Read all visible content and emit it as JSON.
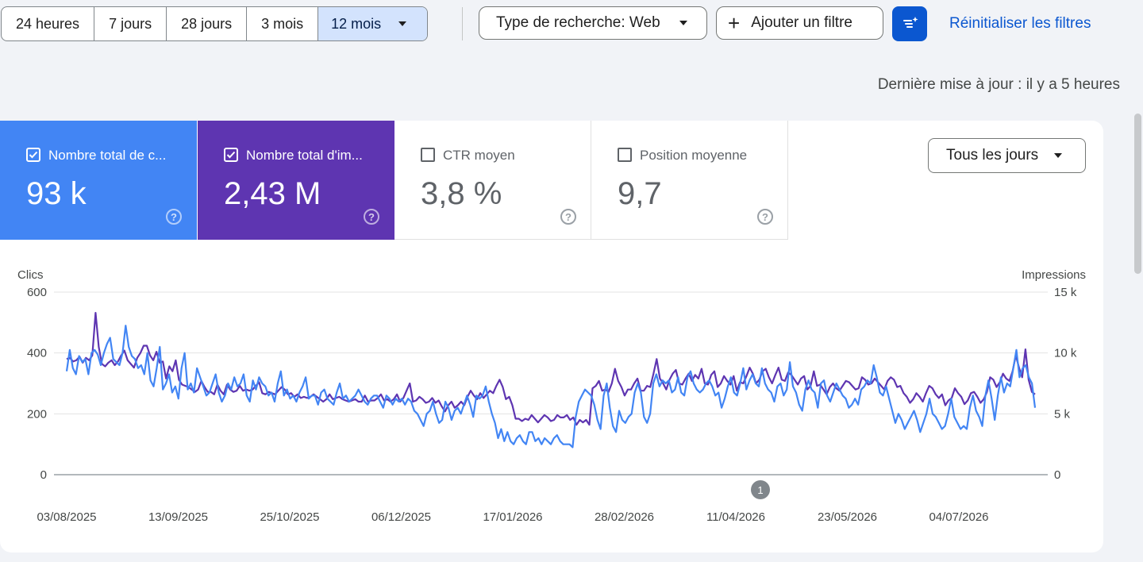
{
  "filters": {
    "ranges": [
      "24 heures",
      "7 jours",
      "28 jours",
      "3 mois"
    ],
    "range_selected": "12 mois",
    "search_type": "Type de recherche: Web",
    "add_filter": "Ajouter un filtre",
    "reset": "Réinitialiser les filtres"
  },
  "last_update": "Dernière mise à jour : il y a 5 heures",
  "metrics": [
    {
      "label": "Nombre total de c...",
      "value": "93 k",
      "checked": true,
      "color": "#4285f4"
    },
    {
      "label": "Nombre total d'im...",
      "value": "2,43 M",
      "checked": true,
      "color": "#5e35b1"
    },
    {
      "label": "CTR moyen",
      "value": "3,8 %",
      "checked": false
    },
    {
      "label": "Position moyenne",
      "value": "9,7",
      "checked": false
    }
  ],
  "help_glyph": "?",
  "granularity": "Tous les jours",
  "annotation_marker": "1",
  "icons": {
    "filter_settings": "filter-sparkle-icon",
    "dropdown": "arrow-drop-down-icon",
    "add": "plus-icon",
    "help": "help-circle-icon"
  },
  "chart_data": {
    "type": "line",
    "xlabel": "",
    "y_left_label": "Clics",
    "y_right_label": "Impressions",
    "y_left_ticks": [
      "0",
      "200",
      "400",
      "600"
    ],
    "y_right_ticks": [
      "0",
      "5 k",
      "10 k",
      "15 k"
    ],
    "y_left_range": [
      0,
      600
    ],
    "y_right_range": [
      0,
      15000
    ],
    "x_tick_labels": [
      "03/08/2025",
      "13/09/2025",
      "25/10/2025",
      "06/12/2025",
      "17/01/2026",
      "28/02/2026",
      "11/04/2026",
      "23/05/2026",
      "04/07/2026"
    ],
    "grid": true,
    "series": [
      {
        "name": "Clics",
        "axis": "left",
        "color": "#4285f4",
        "values": [
          340,
          410,
          350,
          330,
          390,
          370,
          380,
          330,
          400,
          410,
          395,
          360,
          400,
          430,
          450,
          380,
          370,
          360,
          400,
          490,
          420,
          390,
          380,
          350,
          360,
          330,
          400,
          310,
          290,
          350,
          420,
          280,
          300,
          330,
          270,
          290,
          250,
          350,
          400,
          280,
          300,
          270,
          350,
          320,
          290,
          260,
          270,
          300,
          330,
          270,
          240,
          260,
          300,
          280,
          320,
          290,
          300,
          330,
          260,
          240,
          310,
          280,
          320,
          300,
          290,
          260,
          270,
          240,
          300,
          340,
          260,
          280,
          250,
          260,
          240,
          270,
          290,
          320,
          250,
          260,
          260,
          230,
          270,
          280,
          250,
          240,
          230,
          270,
          300,
          250,
          260,
          240,
          250,
          260,
          280,
          260,
          240,
          230,
          250,
          260,
          260,
          240,
          220,
          260,
          250,
          230,
          250,
          240,
          250,
          230,
          250,
          240,
          210,
          200,
          180,
          160,
          200,
          210,
          240,
          200,
          170,
          180,
          240,
          220,
          180,
          210,
          220,
          200,
          230,
          260,
          230,
          190,
          260,
          250,
          260,
          290,
          240,
          200,
          170,
          120,
          150,
          110,
          140,
          110,
          100,
          120,
          130,
          110,
          100,
          140,
          140,
          110,
          120,
          100,
          120,
          110,
          100,
          120,
          130,
          110,
          100,
          100,
          100,
          90,
          190,
          240,
          260,
          280,
          270,
          260,
          230,
          180,
          150,
          260,
          300,
          220,
          160,
          140,
          210,
          180,
          170,
          190,
          200,
          270,
          300,
          270,
          190,
          170,
          200,
          300,
          330,
          290,
          310,
          300,
          310,
          270,
          280,
          320,
          270,
          260,
          320,
          340,
          300,
          280,
          270,
          280,
          300,
          310,
          290,
          260,
          270,
          220,
          250,
          290,
          320,
          270,
          260,
          300,
          350,
          280,
          310,
          330,
          300,
          290,
          350,
          300,
          280,
          270,
          240,
          290,
          300,
          260,
          280,
          370,
          290,
          270,
          230,
          210,
          280,
          310,
          280,
          270,
          220,
          300,
          310,
          260,
          240,
          270,
          300,
          280,
          260,
          250,
          220,
          230,
          250,
          230,
          280,
          290,
          310,
          300,
          360,
          320,
          270,
          260,
          290,
          250,
          210,
          170,
          200,
          180,
          150,
          170,
          190,
          210,
          180,
          140,
          170,
          200,
          250,
          200,
          190,
          170,
          150,
          160,
          200,
          250,
          190,
          170,
          150,
          160,
          150,
          220,
          260,
          210,
          190,
          160,
          260,
          310,
          250,
          180,
          260,
          320,
          270,
          300,
          290,
          350,
          410,
          320,
          350,
          360,
          320,
          300,
          220
        ]
      },
      {
        "name": "Impressions",
        "axis": "right",
        "color": "#5e35b1",
        "values": [
          9500,
          9600,
          9300,
          9400,
          9700,
          9200,
          9600,
          9400,
          9800,
          13300,
          10500,
          9100,
          8900,
          9200,
          9400,
          9000,
          9300,
          9800,
          10200,
          9400,
          9100,
          8800,
          9600,
          10000,
          10600,
          10600,
          9800,
          9400,
          10100,
          9200,
          9300,
          7900,
          8900,
          8500,
          9400,
          7800,
          7400,
          7300,
          7200,
          7000,
          6800,
          7000,
          7700,
          7200,
          6800,
          6800,
          6600,
          7400,
          6900,
          6600,
          7400,
          7000,
          6800,
          6900,
          7300,
          6900,
          7000,
          6900,
          7000,
          7300,
          7600,
          6700,
          6600,
          6800,
          6700,
          6600,
          6900,
          7200,
          7000,
          6600,
          6700,
          6400,
          6600,
          6300,
          6400,
          6300,
          6400,
          6600,
          6400,
          6200,
          6000,
          6200,
          6600,
          6200,
          6300,
          6400,
          6200,
          6100,
          6000,
          6100,
          6200,
          6000,
          6000,
          6500,
          6000,
          6100,
          6100,
          6300,
          6600,
          6100,
          6200,
          6000,
          6200,
          6600,
          6000,
          6300,
          6900,
          7500,
          6000,
          6100,
          6400,
          6200,
          5900,
          6000,
          6300,
          5900,
          6100,
          5600,
          5200,
          5700,
          6000,
          5500,
          5700,
          6000,
          5700,
          6400,
          6900,
          6500,
          6200,
          6700,
          6300,
          6600,
          6900,
          6700,
          7300,
          7800,
          7200,
          6200,
          6400,
          5700,
          4600,
          4600,
          4400,
          4600,
          4500,
          4900,
          4600,
          4300,
          4600,
          4900,
          4700,
          4400,
          4500,
          4900,
          4700,
          4700,
          4900,
          4500,
          4700,
          4100,
          4500,
          4300,
          4500,
          4100,
          7100,
          7300,
          7700,
          6900,
          7000,
          6800,
          7500,
          8700,
          7700,
          7200,
          6500,
          7000,
          7000,
          7500,
          7900,
          6900,
          6900,
          7300,
          7200,
          8300,
          9500,
          7900,
          7500,
          7000,
          7800,
          8300,
          8600,
          7500,
          7400,
          7900,
          8300,
          7700,
          8200,
          7900,
          8700,
          7500,
          7400,
          8200,
          8500,
          7200,
          7500,
          8100,
          7700,
          7400,
          8100,
          6900,
          7600,
          7500,
          8100,
          8800,
          8300,
          7500,
          7800,
          8500,
          8700,
          8000,
          7500,
          8200,
          8800,
          7800,
          7700,
          8400,
          8200,
          7800,
          7400,
          7900,
          8100,
          7000,
          7300,
          8500,
          7300,
          7400,
          7000,
          6600,
          7200,
          7500,
          7100,
          6900,
          7300,
          7700,
          7600,
          7300,
          7000,
          7100,
          8000,
          7800,
          7400,
          7500,
          7900,
          7600,
          7300,
          7000,
          7700,
          8000,
          7800,
          7200,
          7300,
          6700,
          6400,
          5900,
          6200,
          6700,
          6400,
          6000,
          6700,
          7300,
          7100,
          6600,
          6300,
          6600,
          5700,
          6100,
          6300,
          7100,
          6700,
          6400,
          5800,
          6100,
          6700,
          6800,
          6400,
          5900,
          6200,
          6800,
          8000,
          7800,
          7200,
          7600,
          8300,
          7900,
          7700,
          8500,
          9800,
          8800,
          8000,
          10300,
          7800,
          6800,
          6600
        ]
      }
    ]
  }
}
